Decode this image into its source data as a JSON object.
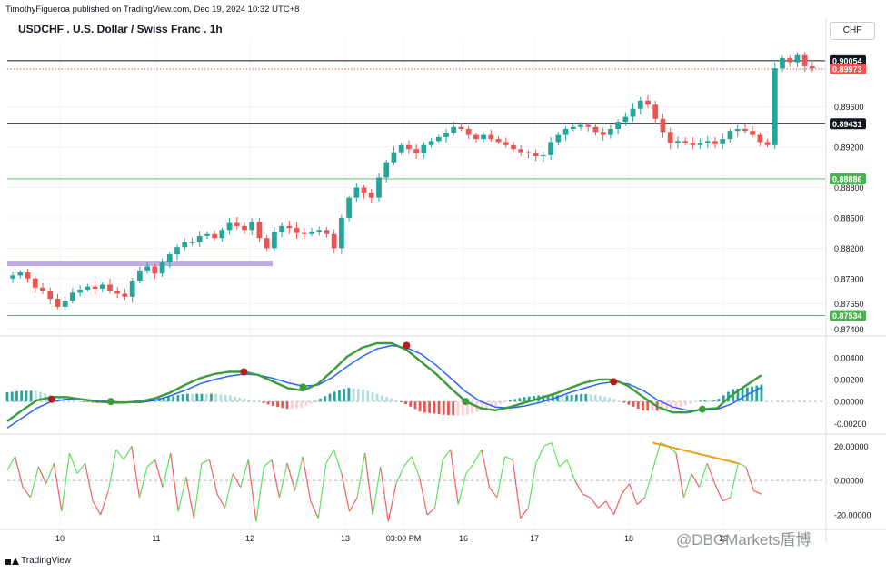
{
  "header": {
    "publisher_line": "TimothyFigueroa published on TradingView.com, Dec 19, 2024 10:32 UTC+8",
    "symbol_title": "USDCHF . U.S. Dollar / Swiss Franc . 1h",
    "currency": "CHF"
  },
  "footer": {
    "brand": "TradingView",
    "watermark": "@DBGMarkets盾博"
  },
  "colors": {
    "bull": "#26a69a",
    "bear": "#ef5350",
    "macd_line": "#3c9c3c",
    "signal_line": "#2962ff",
    "signal_bear": "#b71c1c",
    "osc_up": "#5de25d",
    "osc_down": "#f06060",
    "trend_annotation": "#f39c12",
    "support_zone": "#b39ddb",
    "horizontal_green": "#4caf50"
  },
  "chart_data": [
    {
      "type": "candlestick",
      "title": "USDCHF . U.S. Dollar / Swiss Franc . 1h",
      "x_tick_labels": [
        "10",
        "11",
        "12",
        "13",
        "03:00 PM",
        "16",
        "17",
        "18",
        "19"
      ],
      "y_tick_labels": [
        "0.89600",
        "0.89200",
        "0.88800",
        "0.88500",
        "0.88200",
        "0.87900",
        "0.87650",
        "0.87400"
      ],
      "ylim": [
        0.8735,
        0.9026
      ],
      "price_labels": [
        {
          "value": "0.90054",
          "style": "black-line"
        },
        {
          "value": "0.89973",
          "style": "red-dotted-current"
        },
        {
          "value": "0.89431",
          "style": "black-line"
        },
        {
          "value": "0.88886",
          "style": "green-line"
        },
        {
          "value": "0.87534",
          "style": "green-line"
        }
      ],
      "support_zone": {
        "price": 0.8805,
        "from_label": "10",
        "to_label": "12"
      },
      "close_series": [
        0.8793,
        0.8796,
        0.879,
        0.8781,
        0.8778,
        0.877,
        0.8762,
        0.8768,
        0.8776,
        0.8779,
        0.8782,
        0.878,
        0.8784,
        0.8778,
        0.8775,
        0.8772,
        0.8788,
        0.8798,
        0.8802,
        0.8795,
        0.8806,
        0.8814,
        0.8821,
        0.8826,
        0.8826,
        0.8832,
        0.8834,
        0.883,
        0.8838,
        0.8845,
        0.8842,
        0.8838,
        0.8846,
        0.883,
        0.882,
        0.8836,
        0.8842,
        0.884,
        0.8835,
        0.8834,
        0.8836,
        0.8838,
        0.8834,
        0.882,
        0.885,
        0.887,
        0.888,
        0.8875,
        0.887,
        0.889,
        0.8905,
        0.8915,
        0.8922,
        0.8918,
        0.8914,
        0.8922,
        0.8926,
        0.893,
        0.8934,
        0.894,
        0.8938,
        0.8932,
        0.8928,
        0.8932,
        0.8928,
        0.8925,
        0.8922,
        0.8918,
        0.8915,
        0.8914,
        0.8911,
        0.8912,
        0.8925,
        0.8932,
        0.8938,
        0.894,
        0.8942,
        0.894,
        0.8935,
        0.8932,
        0.8938,
        0.8945,
        0.895,
        0.8958,
        0.8966,
        0.8962,
        0.8948,
        0.8935,
        0.8924,
        0.8926,
        0.8924,
        0.8922,
        0.8924,
        0.8926,
        0.8923,
        0.8928,
        0.8936,
        0.8938,
        0.8936,
        0.8932,
        0.8925,
        0.8922,
        0.8998,
        0.9008,
        0.9004,
        0.9011,
        0.9,
        0.8998
      ]
    },
    {
      "type": "line",
      "name": "MACD panel",
      "y_tick_labels": [
        "0.00400",
        "0.00200",
        "0.00000",
        "-0.00200"
      ],
      "ylim": [
        -0.0028,
        0.0058
      ],
      "macd": [
        -0.0018,
        -0.0008,
        0.0001,
        0.0004,
        0.0004,
        0.0002,
        0.0,
        -0.0001,
        -0.0001,
        0.0,
        0.0003,
        0.0008,
        0.0015,
        0.0021,
        0.0025,
        0.0027,
        0.0027,
        0.0024,
        0.0018,
        0.0012,
        0.001,
        0.0016,
        0.0028,
        0.0041,
        0.0049,
        0.0053,
        0.0053,
        0.0047,
        0.0036,
        0.0025,
        0.0012,
        0.0,
        -0.0006,
        -0.0008,
        -0.0005,
        -0.0001,
        0.0003,
        0.0007,
        0.0012,
        0.0017,
        0.002,
        0.002,
        0.0014,
        0.0004,
        -0.0005,
        -0.001,
        -0.001,
        -0.0007,
        -0.0006,
        0.0006,
        0.0015,
        0.0024
      ],
      "signal": [
        -0.0024,
        -0.0015,
        -0.0006,
        0.0,
        0.0002,
        0.0002,
        0.0001,
        0.0,
        -0.0001,
        -0.0001,
        0.0001,
        0.0005,
        0.001,
        0.0016,
        0.002,
        0.0023,
        0.0025,
        0.0024,
        0.0021,
        0.0017,
        0.0014,
        0.0015,
        0.0022,
        0.0032,
        0.0041,
        0.0048,
        0.0051,
        0.0049,
        0.0043,
        0.0033,
        0.0021,
        0.0009,
        0.0,
        -0.0005,
        -0.0006,
        -0.0004,
        -0.0001,
        0.0003,
        0.0008,
        0.0012,
        0.0016,
        0.0018,
        0.0016,
        0.001,
        0.0001,
        -0.0005,
        -0.0008,
        -0.0008,
        -0.0007,
        -0.0002,
        0.0006,
        0.0013
      ],
      "cross_markers": [
        {
          "x": "10",
          "y": 0.0002,
          "kind": "bear"
        },
        {
          "x": "11",
          "y": 0.0,
          "kind": "bull"
        },
        {
          "x": "12",
          "y": 0.0027,
          "kind": "bear"
        },
        {
          "x": "13",
          "y": 0.0013,
          "kind": "bull"
        },
        {
          "x": "03:00 PM",
          "y": 0.0051,
          "kind": "bear"
        },
        {
          "x": "17",
          "y": 0.0,
          "kind": "bull"
        },
        {
          "x": "18",
          "y": 0.0018,
          "kind": "bear"
        },
        {
          "x": "19",
          "y": -0.0007,
          "kind": "bull"
        }
      ]
    },
    {
      "type": "line",
      "name": "Oscillator panel",
      "y_tick_labels": [
        "20.00000",
        "0.00000",
        "-20.00000"
      ],
      "ylim": [
        -28,
        26
      ],
      "values": [
        6,
        14,
        -4,
        -10,
        8,
        -2,
        10,
        -18,
        16,
        4,
        10,
        -12,
        -20,
        -6,
        18,
        12,
        20,
        -10,
        8,
        12,
        -4,
        16,
        -18,
        2,
        -22,
        10,
        12,
        -8,
        -16,
        4,
        -4,
        12,
        -24,
        8,
        12,
        -10,
        10,
        -6,
        14,
        -12,
        -22,
        10,
        18,
        4,
        -18,
        -10,
        16,
        -20,
        8,
        -24,
        -2,
        8,
        14,
        2,
        -20,
        -16,
        12,
        18,
        -14,
        4,
        10,
        18,
        -4,
        -10,
        14,
        12,
        -22,
        -16,
        10,
        20,
        22,
        8,
        12,
        0,
        -8,
        -10,
        -16,
        -12,
        -20,
        -8,
        -2,
        -14,
        -10,
        6,
        22,
        20,
        16,
        -10,
        4,
        -4,
        10,
        -2,
        -12,
        -10,
        10,
        8,
        -6,
        -8
      ],
      "trend_annotation": {
        "from": [
          83,
          22
        ],
        "to": [
          94,
          10
        ]
      }
    }
  ]
}
